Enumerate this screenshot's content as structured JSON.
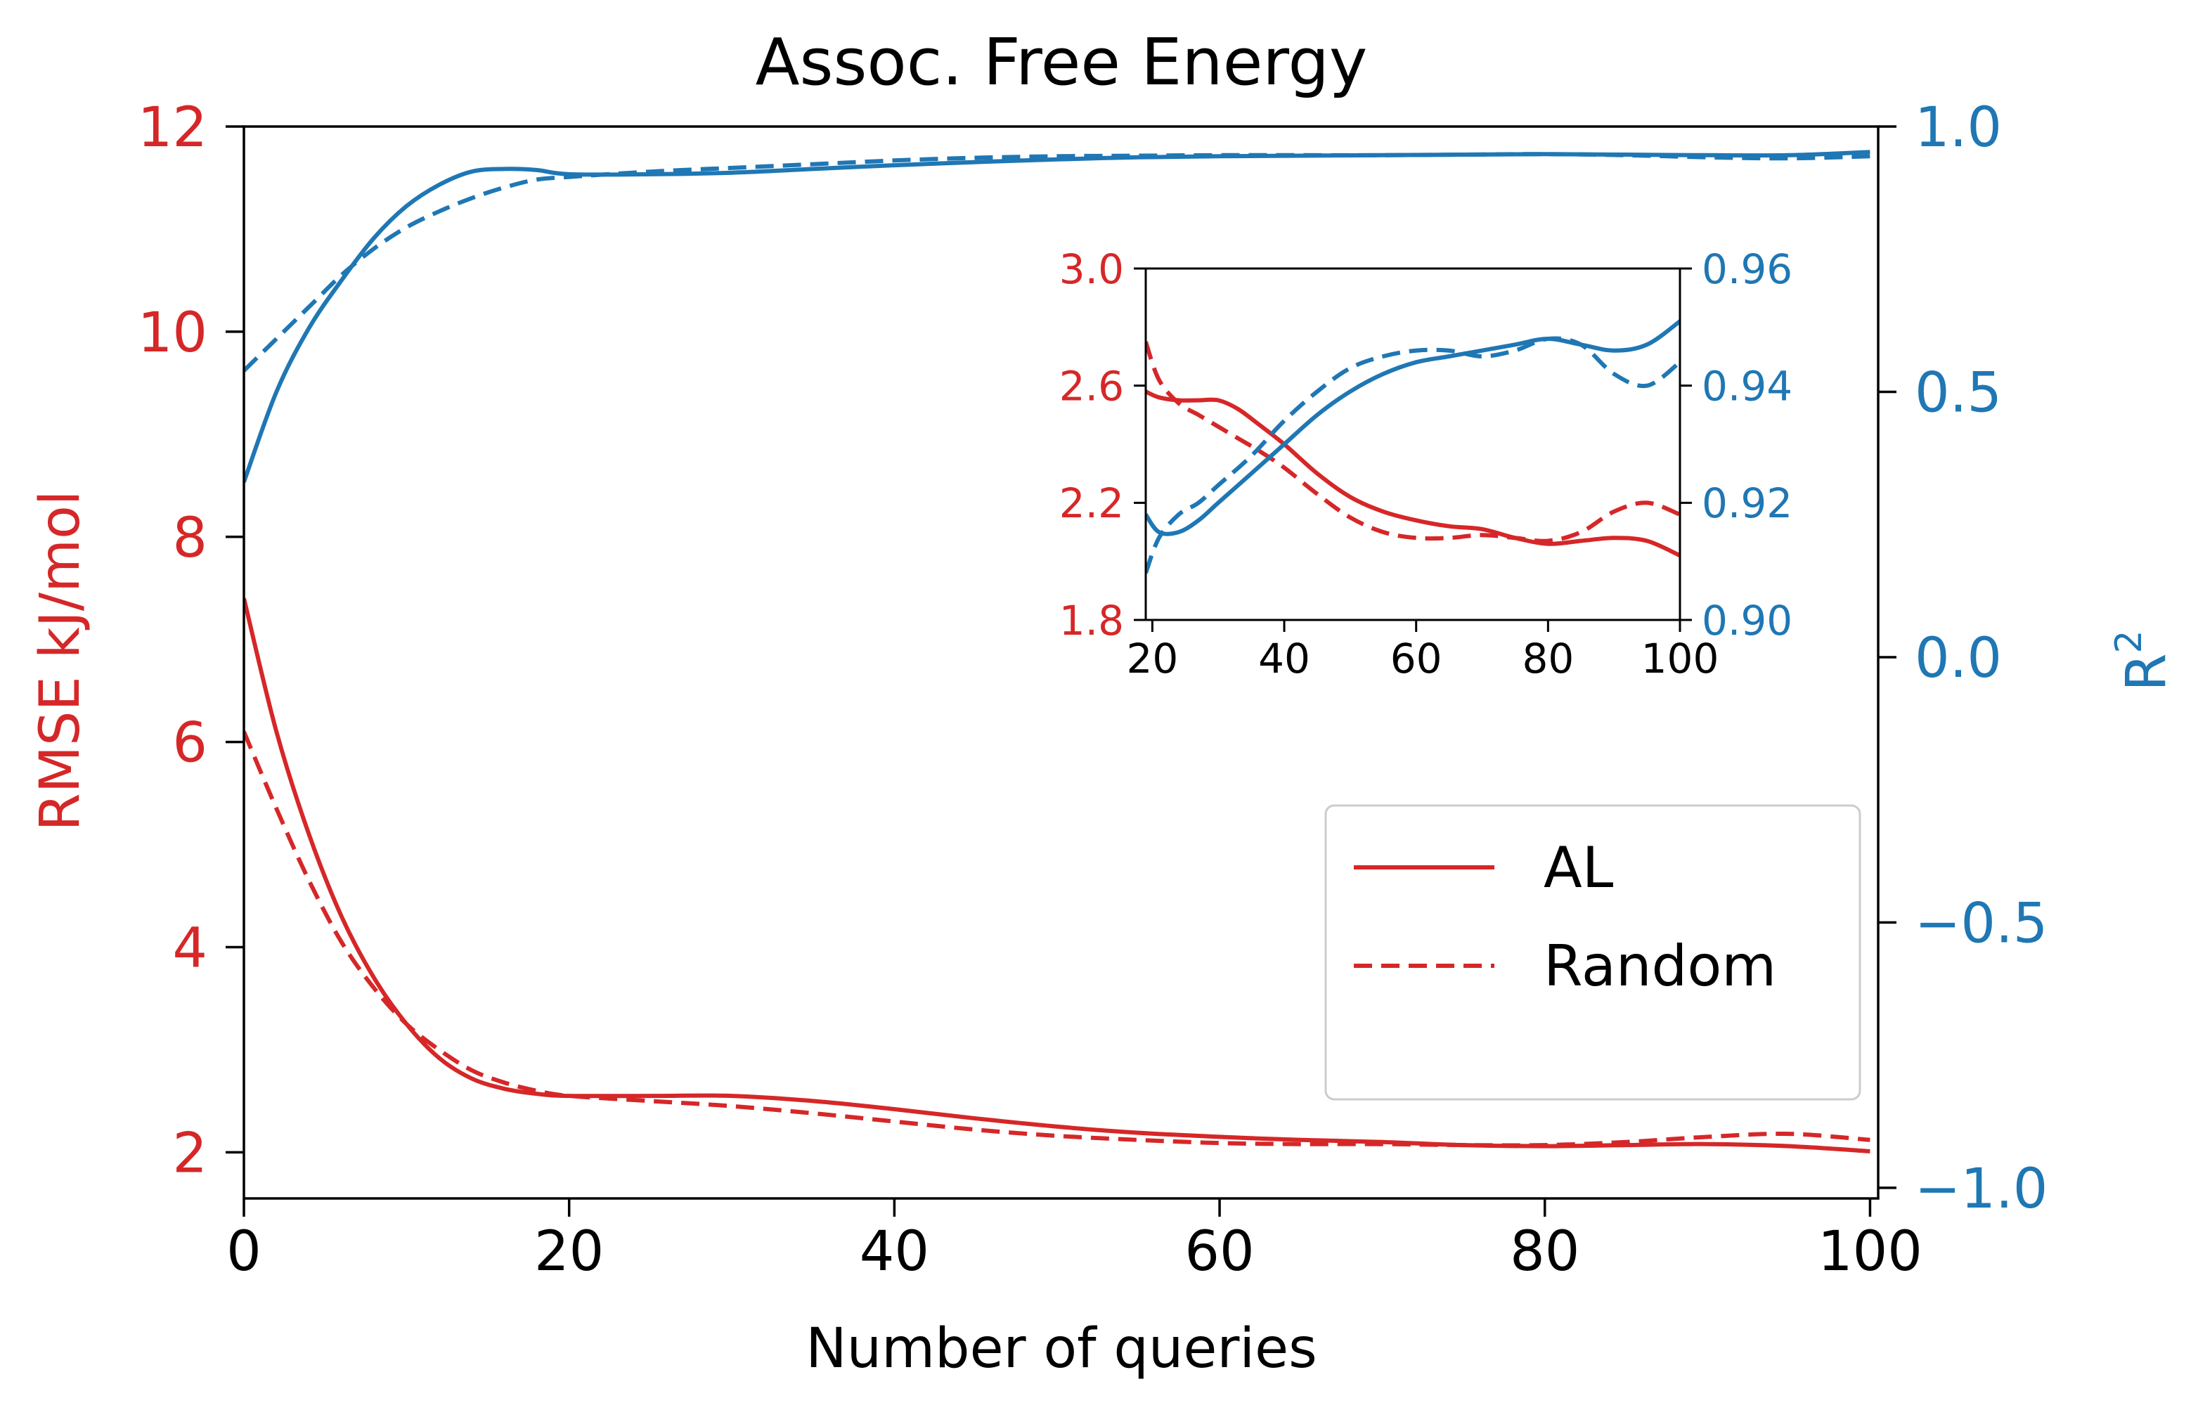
{
  "colors": {
    "rmse": "#d62728",
    "r2": "#1f77b4",
    "axis": "#000000"
  },
  "chart_data": [
    {
      "type": "line",
      "role": "main",
      "title": "Assoc. Free Energy",
      "xlabel": "Number of queries",
      "ylabel_left": "RMSE kJ/mol",
      "ylabel_right_base": "R",
      "ylabel_right_sup": "2",
      "xlim": [
        0,
        100.5
      ],
      "ylim_left": [
        1.55,
        12.0
      ],
      "ylim_right": [
        -1.02,
        1.0
      ],
      "xticks": [
        0,
        20,
        40,
        60,
        80,
        100
      ],
      "yticks_left": [
        2,
        4,
        6,
        8,
        10,
        12
      ],
      "yticks_right": [
        {
          "value": -1.0,
          "label": "−1.0"
        },
        {
          "value": -0.5,
          "label": "−0.5"
        },
        {
          "value": 0.0,
          "label": "0.0"
        },
        {
          "value": 0.5,
          "label": "0.5"
        },
        {
          "value": 1.0,
          "label": "1.0"
        }
      ],
      "legend": {
        "position": "lower-right",
        "entries": [
          {
            "label": "AL",
            "style": "solid"
          },
          {
            "label": "Random",
            "style": "dashed"
          }
        ]
      },
      "series": [
        {
          "name": "AL",
          "axis": "left",
          "style": "solid",
          "color": "rmse",
          "x": [
            0,
            2,
            4,
            6,
            8,
            10,
            12,
            14,
            16,
            18,
            20,
            25,
            30,
            35,
            40,
            45,
            50,
            55,
            60,
            65,
            70,
            75,
            80,
            85,
            90,
            95,
            100
          ],
          "y": [
            7.4,
            6.1,
            5.1,
            4.3,
            3.7,
            3.25,
            2.92,
            2.72,
            2.62,
            2.57,
            2.55,
            2.55,
            2.55,
            2.5,
            2.42,
            2.33,
            2.25,
            2.19,
            2.15,
            2.12,
            2.1,
            2.07,
            2.06,
            2.07,
            2.08,
            2.06,
            2.01
          ]
        },
        {
          "name": "Random",
          "axis": "left",
          "style": "dashed",
          "color": "rmse",
          "x": [
            0,
            2,
            4,
            6,
            8,
            10,
            12,
            14,
            16,
            18,
            20,
            25,
            30,
            35,
            40,
            45,
            50,
            55,
            60,
            65,
            70,
            75,
            80,
            85,
            90,
            95,
            100
          ],
          "y": [
            6.1,
            5.35,
            4.65,
            4.05,
            3.6,
            3.25,
            3.0,
            2.8,
            2.68,
            2.6,
            2.55,
            2.5,
            2.45,
            2.38,
            2.3,
            2.22,
            2.16,
            2.12,
            2.09,
            2.08,
            2.08,
            2.07,
            2.07,
            2.1,
            2.15,
            2.18,
            2.12
          ]
        },
        {
          "name": "AL",
          "axis": "right",
          "style": "solid",
          "color": "r2",
          "x": [
            0,
            2,
            4,
            6,
            8,
            10,
            12,
            14,
            16,
            18,
            20,
            25,
            30,
            35,
            40,
            45,
            50,
            55,
            60,
            65,
            70,
            75,
            80,
            85,
            90,
            95,
            100
          ],
          "y": [
            0.33,
            0.5,
            0.62,
            0.71,
            0.79,
            0.85,
            0.89,
            0.915,
            0.92,
            0.918,
            0.91,
            0.91,
            0.913,
            0.92,
            0.927,
            0.933,
            0.938,
            0.942,
            0.944,
            0.945,
            0.946,
            0.947,
            0.948,
            0.947,
            0.946,
            0.946,
            0.952
          ]
        },
        {
          "name": "Random",
          "axis": "right",
          "style": "dashed",
          "color": "r2",
          "x": [
            0,
            2,
            4,
            6,
            8,
            10,
            12,
            14,
            16,
            18,
            20,
            25,
            30,
            35,
            40,
            45,
            50,
            55,
            60,
            65,
            70,
            75,
            80,
            85,
            90,
            95,
            100
          ],
          "y": [
            0.54,
            0.6,
            0.66,
            0.72,
            0.77,
            0.81,
            0.84,
            0.865,
            0.885,
            0.9,
            0.905,
            0.915,
            0.922,
            0.929,
            0.936,
            0.941,
            0.944,
            0.945,
            0.946,
            0.946,
            0.946,
            0.947,
            0.948,
            0.946,
            0.942,
            0.94,
            0.944
          ]
        }
      ]
    },
    {
      "type": "line",
      "role": "inset",
      "xlim": [
        19,
        100
      ],
      "ylim_left": [
        1.8,
        3.0
      ],
      "ylim_right": [
        0.9,
        0.96
      ],
      "xticks": [
        20,
        40,
        60,
        80,
        100
      ],
      "yticks_left": [
        {
          "value": 1.8,
          "label": "1.8"
        },
        {
          "value": 2.2,
          "label": "2.2"
        },
        {
          "value": 2.6,
          "label": "2.6"
        },
        {
          "value": 3.0,
          "label": "3.0"
        }
      ],
      "yticks_right": [
        {
          "value": 0.9,
          "label": "0.90"
        },
        {
          "value": 0.92,
          "label": "0.92"
        },
        {
          "value": 0.94,
          "label": "0.94"
        },
        {
          "value": 0.96,
          "label": "0.96"
        }
      ],
      "series": [
        {
          "name": "AL",
          "axis": "left",
          "style": "solid",
          "color": "rmse",
          "x": [
            19,
            21,
            24,
            27,
            30,
            33,
            36,
            40,
            45,
            50,
            55,
            60,
            65,
            70,
            75,
            80,
            85,
            90,
            95,
            100
          ],
          "y": [
            2.58,
            2.56,
            2.55,
            2.55,
            2.55,
            2.52,
            2.47,
            2.4,
            2.3,
            2.22,
            2.17,
            2.14,
            2.12,
            2.11,
            2.08,
            2.06,
            2.07,
            2.08,
            2.07,
            2.02
          ]
        },
        {
          "name": "Random",
          "axis": "left",
          "style": "dashed",
          "color": "rmse",
          "x": [
            19,
            21,
            24,
            27,
            30,
            33,
            36,
            40,
            45,
            50,
            55,
            60,
            65,
            70,
            75,
            80,
            85,
            90,
            95,
            100
          ],
          "y": [
            2.75,
            2.62,
            2.54,
            2.5,
            2.46,
            2.42,
            2.38,
            2.32,
            2.23,
            2.15,
            2.1,
            2.08,
            2.08,
            2.09,
            2.08,
            2.07,
            2.1,
            2.17,
            2.2,
            2.16
          ]
        },
        {
          "name": "AL",
          "axis": "right",
          "style": "solid",
          "color": "r2",
          "x": [
            19,
            21,
            24,
            27,
            30,
            35,
            40,
            45,
            50,
            55,
            60,
            65,
            70,
            75,
            80,
            85,
            90,
            95,
            100
          ],
          "y": [
            0.918,
            0.915,
            0.915,
            0.917,
            0.92,
            0.925,
            0.93,
            0.935,
            0.939,
            0.942,
            0.944,
            0.945,
            0.946,
            0.947,
            0.948,
            0.947,
            0.946,
            0.947,
            0.951
          ]
        },
        {
          "name": "Random",
          "axis": "right",
          "style": "dashed",
          "color": "r2",
          "x": [
            19,
            21,
            24,
            27,
            30,
            35,
            40,
            45,
            50,
            55,
            60,
            65,
            70,
            75,
            80,
            85,
            90,
            95,
            100
          ],
          "y": [
            0.908,
            0.914,
            0.918,
            0.92,
            0.923,
            0.928,
            0.934,
            0.939,
            0.943,
            0.945,
            0.946,
            0.946,
            0.945,
            0.946,
            0.948,
            0.947,
            0.942,
            0.94,
            0.944
          ]
        }
      ]
    }
  ]
}
